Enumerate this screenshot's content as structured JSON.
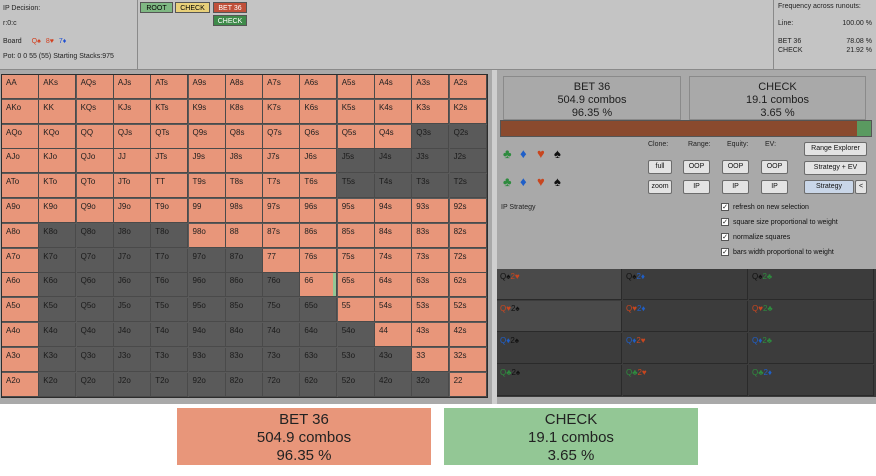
{
  "info": {
    "decision": "IP Decision:",
    "line": "r:0:c",
    "board_label": "Board",
    "board_cards": [
      {
        "text": "Q♠",
        "color": "#d2401f"
      },
      {
        "text": "8♥",
        "color": "#d2401f"
      },
      {
        "text": "7♦",
        "color": "#1f4fd2"
      }
    ],
    "pot": "Pot: 0 0 55 (55) Starting Stacks:975"
  },
  "tree": {
    "root": "ROOT",
    "check": "CHECK",
    "bet": "BET 36",
    "check2": "CHECK"
  },
  "frequency": {
    "title": "Frequency across runouts:",
    "rows": [
      {
        "label": "Line:",
        "value": "100.00 %"
      },
      {
        "label": "BET 36",
        "value": "78.08 %"
      },
      {
        "label": "CHECK",
        "value": "21.92 %"
      }
    ]
  },
  "colors": {
    "bet": "#e8967a",
    "check": "#93c795",
    "empty": "#5a5a5a"
  },
  "grid": [
    [
      "AA",
      "AKs",
      "AQs",
      "AJs",
      "ATs",
      "A9s",
      "A8s",
      "A7s",
      "A6s",
      "A5s",
      "A4s",
      "A3s",
      "A2s"
    ],
    [
      "AKo",
      "KK",
      "KQs",
      "KJs",
      "KTs",
      "K9s",
      "K8s",
      "K7s",
      "K6s",
      "K5s",
      "K4s",
      "K3s",
      "K2s"
    ],
    [
      "AQo",
      "KQo",
      "QQ",
      "QJs",
      "QTs",
      "Q9s",
      "Q8s",
      "Q7s",
      "Q6s",
      "Q5s",
      "Q4s",
      "Q3s",
      "Q2s"
    ],
    [
      "AJo",
      "KJo",
      "QJo",
      "JJ",
      "JTs",
      "J9s",
      "J8s",
      "J7s",
      "J6s",
      "J5s",
      "J4s",
      "J3s",
      "J2s"
    ],
    [
      "ATo",
      "KTo",
      "QTo",
      "JTo",
      "TT",
      "T9s",
      "T8s",
      "T7s",
      "T6s",
      "T5s",
      "T4s",
      "T3s",
      "T2s"
    ],
    [
      "A9o",
      "K9o",
      "Q9o",
      "J9o",
      "T9o",
      "99",
      "98s",
      "97s",
      "96s",
      "95s",
      "94s",
      "93s",
      "92s"
    ],
    [
      "A8o",
      "K8o",
      "Q8o",
      "J8o",
      "T8o",
      "98o",
      "88",
      "87s",
      "86s",
      "85s",
      "84s",
      "83s",
      "82s"
    ],
    [
      "A7o",
      "K7o",
      "Q7o",
      "J7o",
      "T7o",
      "97o",
      "87o",
      "77",
      "76s",
      "75s",
      "74s",
      "73s",
      "72s"
    ],
    [
      "A6o",
      "K6o",
      "Q6o",
      "J6o",
      "T6o",
      "96o",
      "86o",
      "76o",
      "66",
      "65s",
      "64s",
      "63s",
      "62s"
    ],
    [
      "A5o",
      "K5o",
      "Q5o",
      "J5o",
      "T5o",
      "95o",
      "85o",
      "75o",
      "65o",
      "55",
      "54s",
      "53s",
      "52s"
    ],
    [
      "A4o",
      "K4o",
      "Q4o",
      "J4o",
      "T4o",
      "94o",
      "84o",
      "74o",
      "64o",
      "54o",
      "44",
      "43s",
      "42s"
    ],
    [
      "A3o",
      "K3o",
      "Q3o",
      "J3o",
      "T3o",
      "93o",
      "83o",
      "73o",
      "63o",
      "53o",
      "43o",
      "33",
      "32s"
    ],
    [
      "A2o",
      "K2o",
      "Q2o",
      "J2o",
      "T2o",
      "92o",
      "82o",
      "72o",
      "62o",
      "52o",
      "42o",
      "32o",
      "22"
    ]
  ],
  "grid_fill": [
    [
      1,
      1,
      1,
      1,
      1,
      1,
      1,
      1,
      1,
      1,
      1,
      1,
      1
    ],
    [
      1,
      1,
      1,
      1,
      1,
      1,
      1,
      1,
      1,
      1,
      1,
      1,
      1
    ],
    [
      1,
      1,
      1,
      1,
      1,
      1,
      1,
      1,
      1,
      1,
      1,
      0,
      0
    ],
    [
      1,
      1,
      1,
      1,
      1,
      1,
      1,
      1,
      1,
      0,
      0,
      0,
      0
    ],
    [
      1,
      1,
      1,
      1,
      1,
      1,
      1,
      1,
      1,
      0,
      0,
      0,
      0
    ],
    [
      1,
      1,
      1,
      1,
      1,
      1,
      1,
      1,
      1,
      1,
      1,
      1,
      1
    ],
    [
      1,
      0,
      0,
      0,
      0,
      1,
      1,
      1,
      1,
      1,
      1,
      1,
      1
    ],
    [
      1,
      0,
      0,
      0,
      0,
      0,
      0,
      1,
      1,
      1,
      1,
      1,
      1
    ],
    [
      1,
      0,
      0,
      0,
      0,
      0,
      0,
      0,
      0.9,
      1,
      1,
      1,
      1
    ],
    [
      1,
      0,
      0,
      0,
      0,
      0,
      0,
      0,
      0,
      1,
      1,
      1,
      1
    ],
    [
      1,
      0,
      0,
      0,
      0,
      0,
      0,
      0,
      0,
      0,
      1,
      1,
      1
    ],
    [
      1,
      0,
      0,
      0,
      0,
      0,
      0,
      0,
      0,
      0,
      0,
      1,
      1
    ],
    [
      1,
      0,
      0,
      0,
      0,
      0,
      0,
      0,
      0,
      0,
      0,
      0,
      1
    ]
  ],
  "actions": [
    {
      "name": "BET 36",
      "combos": "504.9 combos",
      "pct": "96.35 %",
      "color": "#e8967a"
    },
    {
      "name": "CHECK",
      "combos": "19.1 combos",
      "pct": "3.65 %",
      "color": "#93c795"
    }
  ],
  "strategy_bar": {
    "bet_fraction": 0.9635
  },
  "suits": [
    {
      "glyph": "♣",
      "color": "#2e8b3e"
    },
    {
      "glyph": "♦",
      "color": "#1f5fc8"
    },
    {
      "glyph": "♥",
      "color": "#c8461f"
    },
    {
      "glyph": "♠",
      "color": "#111111"
    }
  ],
  "controls": {
    "clone": "Clone:",
    "range": "Range:",
    "equity": "Equity:",
    "ev": "EV:",
    "full": "full",
    "zoom": "zoom",
    "oop1": "OOP",
    "oop2": "OOP",
    "oop3": "OOP",
    "ip1": "IP",
    "ip2": "IP",
    "ip3": "IP",
    "range_explorer": "Range Explorer",
    "strategy_ev": "Strategy + EV",
    "strategy": "Strategy",
    "back": "<"
  },
  "ip_strategy_label": "IP Strategy",
  "checkboxes": [
    {
      "label": "refresh on new selection",
      "checked": true
    },
    {
      "label": "square size proportional to weight",
      "checked": true
    },
    {
      "label": "normalize squares",
      "checked": true
    },
    {
      "label": "bars width proportional to weight",
      "checked": true
    }
  ],
  "combos": [
    [
      {
        "a": "Q♠",
        "b": "2♥",
        "ca": "#111111",
        "cb": "#c8461f"
      },
      {
        "a": "Q♠",
        "b": "2♦",
        "ca": "#111111",
        "cb": "#1f5fc8"
      },
      {
        "a": "Q♠",
        "b": "2♣",
        "ca": "#111111",
        "cb": "#2e8b3e"
      }
    ],
    [
      {
        "a": "Q♥",
        "b": "2♠",
        "ca": "#c8461f",
        "cb": "#111111"
      },
      {
        "a": "Q♥",
        "b": "2♦",
        "ca": "#c8461f",
        "cb": "#1f5fc8"
      },
      {
        "a": "Q♥",
        "b": "2♣",
        "ca": "#c8461f",
        "cb": "#2e8b3e"
      }
    ],
    [
      {
        "a": "Q♦",
        "b": "2♠",
        "ca": "#1f5fc8",
        "cb": "#111111"
      },
      {
        "a": "Q♦",
        "b": "2♥",
        "ca": "#1f5fc8",
        "cb": "#c8461f"
      },
      {
        "a": "Q♦",
        "b": "2♣",
        "ca": "#1f5fc8",
        "cb": "#2e8b3e"
      }
    ],
    [
      {
        "a": "Q♣",
        "b": "2♠",
        "ca": "#2e8b3e",
        "cb": "#111111"
      },
      {
        "a": "Q♣",
        "b": "2♥",
        "ca": "#2e8b3e",
        "cb": "#c8461f"
      },
      {
        "a": "Q♣",
        "b": "2♦",
        "ca": "#2e8b3e",
        "cb": "#1f5fc8"
      }
    ]
  ],
  "combo_fill": [
    [
      1,
      0,
      0
    ],
    [
      1,
      0,
      0
    ],
    [
      0,
      0,
      0
    ],
    [
      0,
      0,
      0
    ]
  ]
}
